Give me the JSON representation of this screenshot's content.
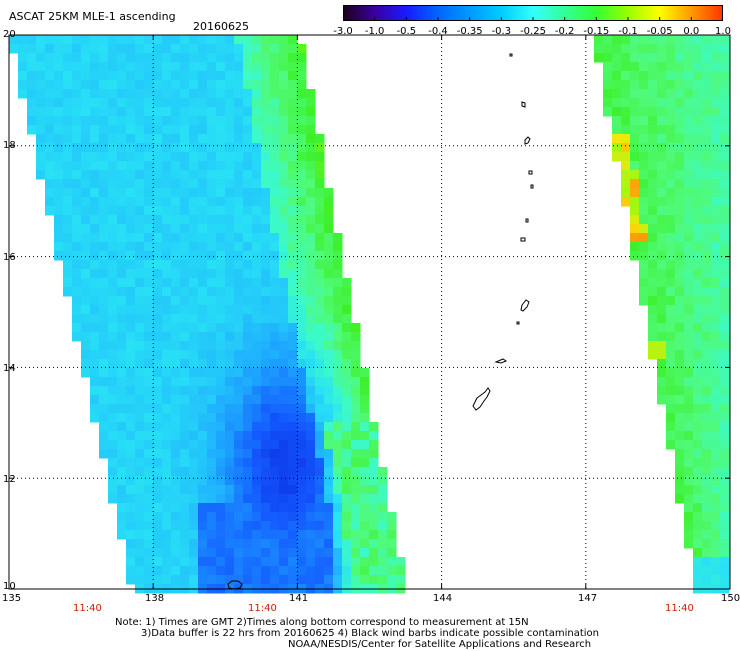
{
  "header": {
    "title": "ASCAT 25KM MLE-1 ascending",
    "date": "20160625"
  },
  "colorbar": {
    "labels": [
      "-3.0",
      "-1.0",
      "-0.5",
      "-0.4",
      "-0.35",
      "-0.3",
      "-0.25",
      "-0.2",
      "-0.15",
      "-0.1",
      "-0.05",
      "0.0",
      "1.0"
    ],
    "colors": [
      "#1a0018",
      "#3a00a0",
      "#1a1aff",
      "#0066ff",
      "#0099ff",
      "#00ccff",
      "#33ffff",
      "#33ff99",
      "#33ff33",
      "#99ff00",
      "#ffff00",
      "#ff9900",
      "#ff3300"
    ]
  },
  "axes": {
    "x_ticks": [
      "135",
      "138",
      "141",
      "144",
      "147",
      "150"
    ],
    "y_ticks": [
      "20",
      "18",
      "16",
      "14",
      "12",
      "10"
    ],
    "time_labels": [
      "11:40",
      "11:40",
      "11:40"
    ]
  },
  "notes": {
    "line1": "Note: 1) Times are GMT 2)Times along bottom correspond to measurement at 15N",
    "line2": "3)Data buffer is 22 hrs from 20160625 4) Black wind barbs indicate possible contamination",
    "line3": "NOAA/NESDIS/Center for Satellite Applications and Research"
  },
  "colors": {
    "grid": "#000000",
    "time_label": "#cc1a00"
  }
}
